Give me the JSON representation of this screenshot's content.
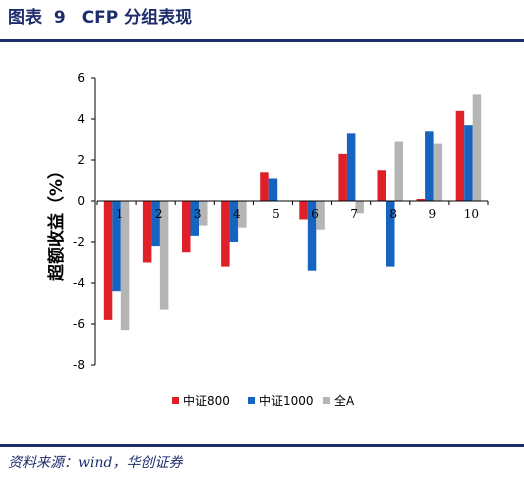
{
  "header": {
    "prefix": "图表",
    "number": "9",
    "title": "CFP 分组表现"
  },
  "source": "资料来源：wind，华创证券",
  "colors": {
    "header": "#1d2d6b",
    "series": [
      "#e02029",
      "#1565c0",
      "#b5b5b5"
    ]
  },
  "chart_data": {
    "type": "bar",
    "title": "",
    "xlabel": "",
    "ylabel": "超额收益（%）",
    "ylim": [
      -8,
      6
    ],
    "yticks": [
      -8,
      -6,
      -4,
      -2,
      0,
      2,
      4,
      6
    ],
    "categories": [
      "1",
      "2",
      "3",
      "4",
      "5",
      "6",
      "7",
      "8",
      "9",
      "10"
    ],
    "series": [
      {
        "name": "中证800",
        "values": [
          -5.8,
          -3.0,
          -2.5,
          -3.2,
          1.4,
          -0.9,
          2.3,
          1.5,
          0.1,
          4.4
        ]
      },
      {
        "name": "中证1000",
        "values": [
          -4.4,
          -2.2,
          -1.7,
          -2.0,
          1.1,
          -3.4,
          3.3,
          -3.2,
          3.4,
          3.7
        ]
      },
      {
        "name": "全A",
        "values": [
          -6.3,
          -5.3,
          -1.2,
          -1.3,
          0.0,
          -1.4,
          -0.6,
          2.9,
          2.8,
          5.2
        ]
      }
    ],
    "grid": false,
    "legend": "bottom-center"
  }
}
